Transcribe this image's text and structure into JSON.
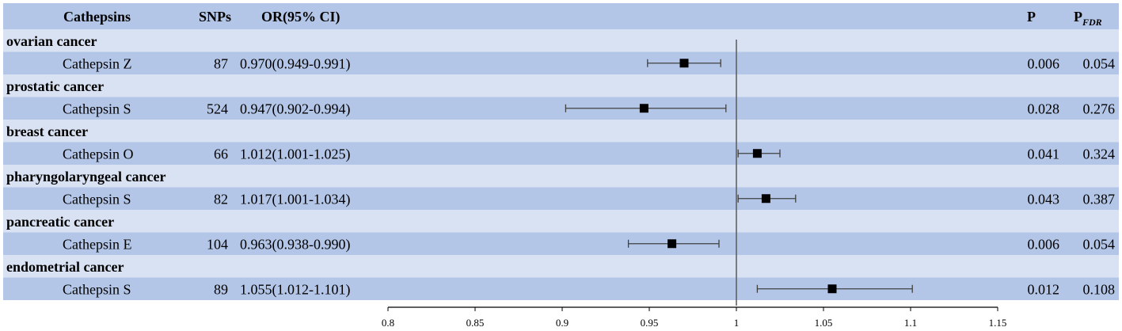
{
  "header": {
    "col_cathepsins": "Cathepsins",
    "col_snps": "SNPs",
    "col_or": "OR(95% CI)",
    "col_p": "P",
    "col_pfdr_main": "P",
    "col_pfdr_sub": "FDR"
  },
  "colors": {
    "dark_band": "#b4c6e7",
    "light_band": "#d9e2f3",
    "marker": "#000000",
    "whisker": "#404040",
    "ref_line": "#595959"
  },
  "chart_data": {
    "type": "forest",
    "reference_line": 1,
    "xlim": [
      0.8,
      1.15
    ],
    "xticks": [
      "0.8",
      "0.85",
      "0.9",
      "0.95",
      "1",
      "1.05",
      "1.1",
      "1.15"
    ],
    "groups": [
      {
        "outcome": "ovarian cancer",
        "cathepsin": "Cathepsin Z",
        "snps": "87",
        "or_text": "0.970(0.949-0.991)",
        "or": 0.97,
        "lower": 0.949,
        "upper": 0.991,
        "p": "0.006",
        "pfdr": "0.054"
      },
      {
        "outcome": "prostatic cancer",
        "cathepsin": "Cathepsin S",
        "snps": "524",
        "or_text": "0.947(0.902-0.994)",
        "or": 0.947,
        "lower": 0.902,
        "upper": 0.994,
        "p": "0.028",
        "pfdr": "0.276"
      },
      {
        "outcome": "breast cancer",
        "cathepsin": "Cathepsin O",
        "snps": "66",
        "or_text": "1.012(1.001-1.025)",
        "or": 1.012,
        "lower": 1.001,
        "upper": 1.025,
        "p": "0.041",
        "pfdr": "0.324"
      },
      {
        "outcome": "pharyngolaryngeal cancer",
        "cathepsin": "Cathepsin S",
        "snps": "82",
        "or_text": "1.017(1.001-1.034)",
        "or": 1.017,
        "lower": 1.001,
        "upper": 1.034,
        "p": "0.043",
        "pfdr": "0.387"
      },
      {
        "outcome": "pancreatic cancer",
        "cathepsin": "Cathepsin E",
        "snps": "104",
        "or_text": "0.963(0.938-0.990)",
        "or": 0.963,
        "lower": 0.938,
        "upper": 0.99,
        "p": "0.006",
        "pfdr": "0.054"
      },
      {
        "outcome": "endometrial cancer",
        "cathepsin": "Cathepsin S",
        "snps": "89",
        "or_text": "1.055(1.012-1.101)",
        "or": 1.055,
        "lower": 1.012,
        "upper": 1.101,
        "p": "0.012",
        "pfdr": "0.108"
      }
    ]
  }
}
